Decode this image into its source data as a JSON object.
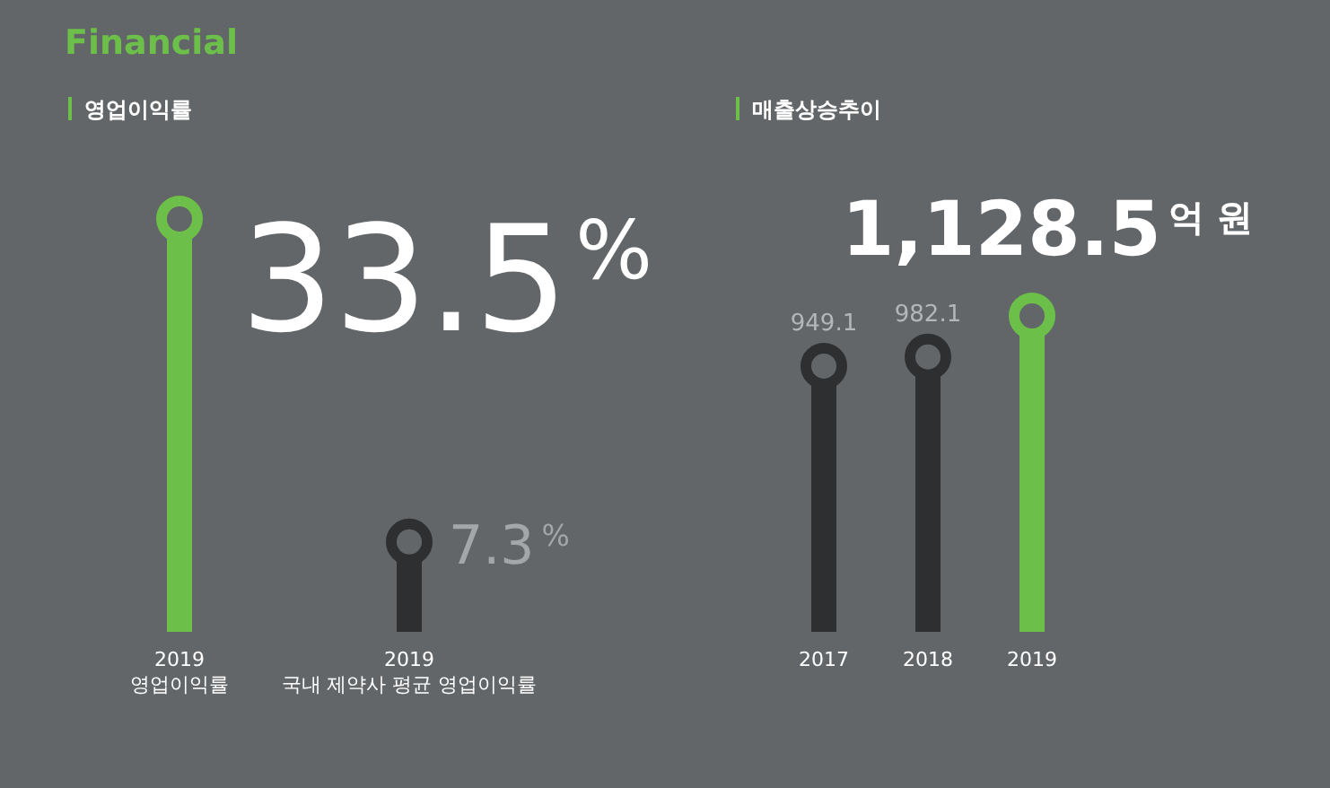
{
  "chart_data": [
    {
      "type": "lollipop",
      "title": "Financial",
      "subtitle": "영업이익률",
      "categories": [
        "2019\n영업이익률",
        "2019\n국내 제약사 평균 영업이익률"
      ],
      "values": [
        33.5,
        7.3
      ],
      "colors": [
        "#6cc04a",
        "#2e2f31"
      ],
      "value_labels": [
        "33.5$^{%}$",
        "7.3$^{%}$"
      ]
    },
    {
      "type": "lollipop",
      "subtitle": "매출상승추이",
      "categories": [
        "2017",
        "2018",
        "2019"
      ],
      "values": [
        949.1,
        982.1,
        1128.5
      ],
      "colors": [
        "#2e2f31",
        "#2e2f31",
        "#6cc04a"
      ],
      "value_labels": [
        "949.1",
        "982.1",
        "1,128.5$^{억 원}$"
      ]
    }
  ]
}
